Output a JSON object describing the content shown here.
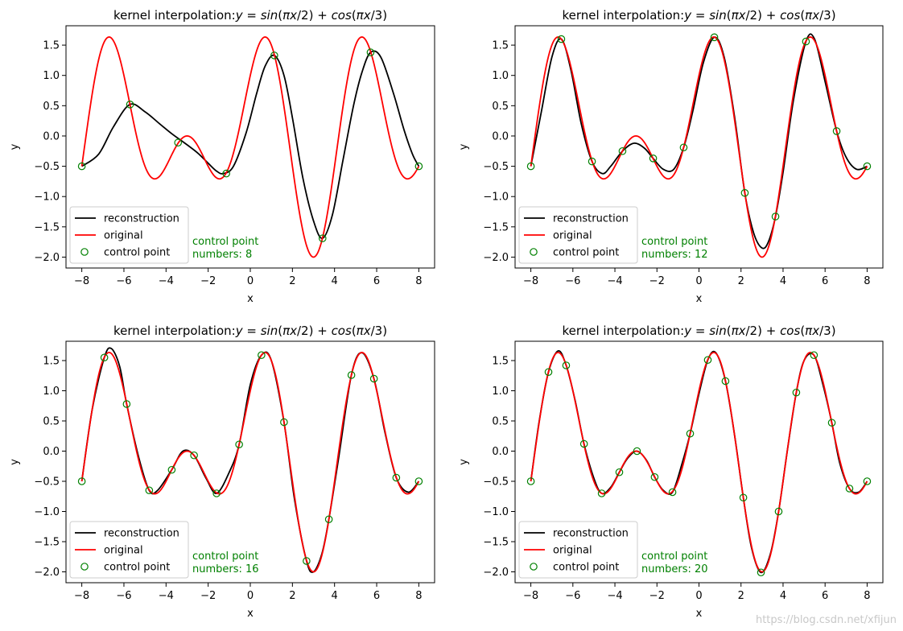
{
  "watermark": "https://blog.csdn.net/xfijun",
  "colors": {
    "reconstruction": "#000000",
    "original": "#ff0000",
    "control": "#008000"
  },
  "chart_data": [
    {
      "type": "line",
      "title_prefix": "kernel interpolation:",
      "title_formula": [
        "y",
        " = ",
        "sin",
        "(",
        "π",
        "x",
        "/2) + ",
        "cos",
        "(",
        "π",
        "x",
        "/3)"
      ],
      "xlabel": "x",
      "ylabel": "y",
      "xlim": [
        -8.75,
        8.75
      ],
      "ylim": [
        -2.18,
        1.82
      ],
      "xticks": [
        -8,
        -6,
        -4,
        -2,
        0,
        2,
        4,
        6,
        8
      ],
      "yticks": [
        -2.0,
        -1.5,
        -1.0,
        -0.5,
        0.0,
        0.5,
        1.0,
        1.5
      ],
      "legend": {
        "placement": "lower-left",
        "entries": [
          "reconstruction",
          "original",
          "control point"
        ]
      },
      "annotation": [
        "control point",
        "numbers: 8"
      ],
      "series": [
        {
          "name": "reconstruction",
          "x": [
            -8,
            -7.2,
            -6.5,
            -5.72,
            -5.0,
            -4.3,
            -3.7,
            -3.14,
            -2.5,
            -2.0,
            -1.6,
            -1.28,
            -0.8,
            -0.2,
            0.3,
            0.7,
            1.14,
            1.6,
            2.0,
            2.5,
            3.0,
            3.43,
            3.9,
            4.4,
            4.9,
            5.3,
            5.71,
            6.2,
            6.8,
            7.3,
            7.7,
            8
          ],
          "y": [
            -0.5,
            -0.3,
            0.15,
            0.52,
            0.4,
            0.2,
            0.03,
            -0.11,
            -0.28,
            -0.45,
            -0.58,
            -0.62,
            -0.5,
            0.05,
            0.7,
            1.15,
            1.33,
            1.0,
            0.3,
            -0.7,
            -1.4,
            -1.69,
            -1.3,
            -0.4,
            0.5,
            1.05,
            1.38,
            1.3,
            0.7,
            0.1,
            -0.3,
            -0.5
          ]
        },
        {
          "name": "original",
          "formula": "sin(pi*x/2)+cos(pi*x/3)",
          "x_from": -8,
          "x_to": 8
        },
        {
          "name": "control point",
          "x": [
            -8,
            -5.71,
            -3.43,
            -1.14,
            1.14,
            3.43,
            5.71,
            8
          ],
          "y": [
            -0.5,
            0.52,
            -0.11,
            -0.62,
            1.33,
            -1.69,
            1.38,
            -0.5
          ]
        }
      ]
    },
    {
      "type": "line",
      "title_prefix": "kernel interpolation:",
      "title_formula": [
        "y",
        " = ",
        "sin",
        "(",
        "π",
        "x",
        "/2) + ",
        "cos",
        "(",
        "π",
        "x",
        "/3)"
      ],
      "xlabel": "x",
      "ylabel": "y",
      "xlim": [
        -8.75,
        8.75
      ],
      "ylim": [
        -2.18,
        1.82
      ],
      "xticks": [
        -8,
        -6,
        -4,
        -2,
        0,
        2,
        4,
        6,
        8
      ],
      "yticks": [
        -2.0,
        -1.5,
        -1.0,
        -0.5,
        0.0,
        0.5,
        1.0,
        1.5
      ],
      "legend": {
        "placement": "lower-left",
        "entries": [
          "reconstruction",
          "original",
          "control point"
        ]
      },
      "annotation": [
        "control point",
        "numbers: 12"
      ],
      "series": [
        {
          "name": "reconstruction",
          "x": [
            -8,
            -7.5,
            -7.0,
            -6.55,
            -6.1,
            -5.6,
            -5.09,
            -4.6,
            -4.2,
            -3.64,
            -3.1,
            -2.6,
            -2.18,
            -1.7,
            -1.2,
            -0.73,
            -0.3,
            0.2,
            0.73,
            1.2,
            1.7,
            2.18,
            2.6,
            3.0,
            3.3,
            3.64,
            4.0,
            4.5,
            5.09,
            5.5,
            6.0,
            6.55,
            7.0,
            7.5,
            8
          ],
          "y": [
            -0.5,
            0.4,
            1.3,
            1.6,
            1.1,
            0.2,
            -0.42,
            -0.62,
            -0.5,
            -0.25,
            -0.12,
            -0.2,
            -0.37,
            -0.55,
            -0.55,
            -0.19,
            0.4,
            1.2,
            1.63,
            1.3,
            0.3,
            -0.94,
            -1.6,
            -1.85,
            -1.75,
            -1.33,
            -0.6,
            0.6,
            1.56,
            1.6,
            0.9,
            0.08,
            -0.35,
            -0.55,
            -0.5
          ]
        },
        {
          "name": "original",
          "formula": "sin(pi*x/2)+cos(pi*x/3)",
          "x_from": -8,
          "x_to": 8
        },
        {
          "name": "control point",
          "x": [
            -8,
            -6.55,
            -5.09,
            -3.64,
            -2.18,
            -0.73,
            0.73,
            2.18,
            3.64,
            5.09,
            6.55,
            8
          ],
          "y": [
            -0.5,
            1.6,
            -0.42,
            -0.25,
            -0.37,
            -0.19,
            1.63,
            -0.94,
            -1.33,
            1.56,
            0.08,
            -0.5
          ]
        }
      ]
    },
    {
      "type": "line",
      "title_prefix": "kernel interpolation:",
      "title_formula": [
        "y",
        " = ",
        "sin",
        "(",
        "π",
        "x",
        "/2) + ",
        "cos",
        "(",
        "π",
        "x",
        "/3)"
      ],
      "xlabel": "x",
      "ylabel": "y",
      "xlim": [
        -8.75,
        8.75
      ],
      "ylim": [
        -2.18,
        1.82
      ],
      "xticks": [
        -8,
        -6,
        -4,
        -2,
        0,
        2,
        4,
        6,
        8
      ],
      "yticks": [
        -2.0,
        -1.5,
        -1.0,
        -0.5,
        0.0,
        0.5,
        1.0,
        1.5
      ],
      "legend": {
        "placement": "lower-left",
        "entries": [
          "reconstruction",
          "original",
          "control point"
        ]
      },
      "annotation": [
        "control point",
        "numbers: 16"
      ],
      "series": [
        {
          "name": "reconstruction",
          "x": [
            -8,
            -7.5,
            -6.93,
            -6.6,
            -6.2,
            -5.87,
            -5.3,
            -4.8,
            -4.4,
            -3.73,
            -3.2,
            -2.67,
            -2.1,
            -1.6,
            -1.0,
            -0.53,
            0.0,
            0.53,
            1.0,
            1.6,
            2.1,
            2.67,
            3.0,
            3.4,
            3.73,
            4.2,
            4.8,
            5.3,
            5.87,
            6.4,
            6.93,
            7.5,
            8
          ],
          "y": [
            -0.5,
            0.7,
            1.55,
            1.7,
            1.4,
            0.78,
            -0.1,
            -0.65,
            -0.65,
            -0.31,
            0.0,
            -0.07,
            -0.45,
            -0.7,
            -0.35,
            0.11,
            1.1,
            1.59,
            1.5,
            0.48,
            -0.8,
            -1.82,
            -2.0,
            -1.7,
            -1.13,
            -0.1,
            1.26,
            1.63,
            1.2,
            0.3,
            -0.44,
            -0.68,
            -0.5
          ]
        },
        {
          "name": "original",
          "formula": "sin(pi*x/2)+cos(pi*x/3)",
          "x_from": -8,
          "x_to": 8
        },
        {
          "name": "control point",
          "x": [
            -8,
            -6.93,
            -5.87,
            -4.8,
            -3.73,
            -2.67,
            -1.6,
            -0.53,
            0.53,
            1.6,
            2.67,
            3.73,
            4.8,
            5.87,
            6.93,
            8
          ],
          "y": [
            -0.5,
            1.55,
            0.78,
            -0.65,
            -0.31,
            -0.07,
            -0.7,
            0.11,
            1.59,
            0.48,
            -1.82,
            -1.13,
            1.26,
            1.2,
            -0.44,
            -0.5
          ]
        }
      ]
    },
    {
      "type": "line",
      "title_prefix": "kernel interpolation:",
      "title_formula": [
        "y",
        " = ",
        "sin",
        "(",
        "π",
        "x",
        "/2) + ",
        "cos",
        "(",
        "π",
        "x",
        "/3)"
      ],
      "xlabel": "x",
      "ylabel": "y",
      "xlim": [
        -8.75,
        8.75
      ],
      "ylim": [
        -2.18,
        1.82
      ],
      "xticks": [
        -8,
        -6,
        -4,
        -2,
        0,
        2,
        4,
        6,
        8
      ],
      "yticks": [
        -2.0,
        -1.5,
        -1.0,
        -0.5,
        0.0,
        0.5,
        1.0,
        1.5
      ],
      "legend": {
        "placement": "lower-left",
        "entries": [
          "reconstruction",
          "original",
          "control point"
        ]
      },
      "annotation": [
        "control point",
        "numbers: 20"
      ],
      "series": [
        {
          "name": "reconstruction",
          "x": [
            -8,
            -7.6,
            -7.16,
            -6.7,
            -6.32,
            -5.9,
            -5.47,
            -5.0,
            -4.63,
            -4.2,
            -3.79,
            -3.4,
            -2.95,
            -2.5,
            -2.11,
            -1.7,
            -1.26,
            -0.8,
            -0.42,
            0.0,
            0.42,
            0.8,
            1.26,
            1.7,
            2.11,
            2.5,
            2.95,
            3.4,
            3.79,
            4.2,
            4.63,
            5.0,
            5.47,
            5.9,
            6.32,
            6.7,
            7.16,
            7.6,
            8
          ],
          "y": [
            -0.5,
            0.5,
            1.31,
            1.66,
            1.42,
            0.85,
            0.12,
            -0.45,
            -0.7,
            -0.6,
            -0.35,
            -0.12,
            0.0,
            -0.15,
            -0.43,
            -0.65,
            -0.68,
            -0.2,
            0.29,
            0.95,
            1.51,
            1.63,
            1.16,
            0.25,
            -0.77,
            -1.6,
            -2.01,
            -1.7,
            -1.0,
            0.0,
            0.97,
            1.5,
            1.59,
            1.1,
            0.47,
            -0.2,
            -0.62,
            -0.68,
            -0.5
          ]
        },
        {
          "name": "original",
          "formula": "sin(pi*x/2)+cos(pi*x/3)",
          "x_from": -8,
          "x_to": 8
        },
        {
          "name": "control point",
          "x": [
            -8,
            -7.16,
            -6.32,
            -5.47,
            -4.63,
            -3.79,
            -2.95,
            -2.11,
            -1.26,
            -0.42,
            0.42,
            1.26,
            2.11,
            2.95,
            3.79,
            4.63,
            5.47,
            6.32,
            7.16,
            8
          ],
          "y": [
            -0.5,
            1.31,
            1.42,
            0.12,
            -0.7,
            -0.35,
            0.0,
            -0.43,
            -0.68,
            0.29,
            1.51,
            1.16,
            -0.77,
            -2.01,
            -1.0,
            0.97,
            1.59,
            0.47,
            -0.62,
            -0.5
          ]
        }
      ]
    }
  ]
}
